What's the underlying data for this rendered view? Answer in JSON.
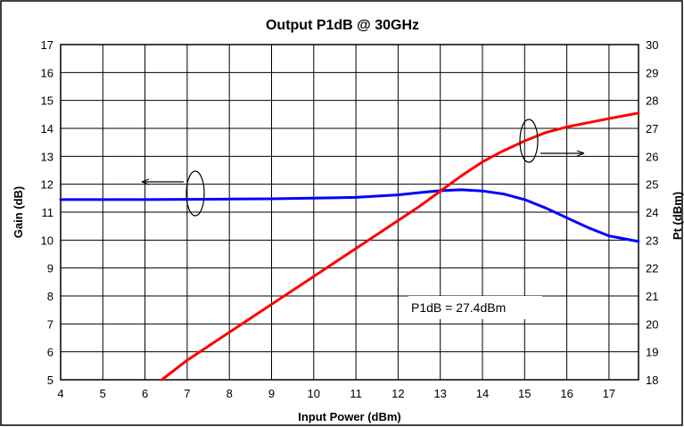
{
  "chart_data": {
    "type": "line",
    "title": "Output P1dB @ 30GHz",
    "xlabel": "Input Power (dBm)",
    "ylabel": "Gain (dB)",
    "y2label": "Pt (dBm)",
    "xlim": [
      4,
      17.7
    ],
    "ylim": [
      5,
      17
    ],
    "y2lim": [
      18,
      30
    ],
    "x_ticks": [
      4,
      5,
      6,
      7,
      8,
      9,
      10,
      11,
      12,
      13,
      14,
      15,
      16,
      17
    ],
    "y_ticks": [
      5,
      6,
      7,
      8,
      9,
      10,
      11,
      12,
      13,
      14,
      15,
      16,
      17
    ],
    "y2_ticks": [
      18,
      19,
      20,
      21,
      22,
      23,
      24,
      25,
      26,
      27,
      28,
      29,
      30
    ],
    "grid": true,
    "series": [
      {
        "axis": "left",
        "color": "#0000ff",
        "points": [
          [
            4,
            11.45
          ],
          [
            5,
            11.45
          ],
          [
            6,
            11.45
          ],
          [
            7,
            11.46
          ],
          [
            8,
            11.47
          ],
          [
            9,
            11.48
          ],
          [
            10,
            11.5
          ],
          [
            11,
            11.53
          ],
          [
            12,
            11.62
          ],
          [
            12.5,
            11.7
          ],
          [
            13,
            11.77
          ],
          [
            13.5,
            11.8
          ],
          [
            14,
            11.76
          ],
          [
            14.5,
            11.65
          ],
          [
            15,
            11.45
          ],
          [
            15.5,
            11.15
          ],
          [
            16,
            10.8
          ],
          [
            16.5,
            10.45
          ],
          [
            17,
            10.15
          ],
          [
            17.7,
            9.95
          ]
        ]
      },
      {
        "axis": "right",
        "color": "#ff0000",
        "points": [
          [
            6.4,
            18
          ],
          [
            7,
            18.7
          ],
          [
            8,
            19.7
          ],
          [
            9,
            20.7
          ],
          [
            10,
            21.7
          ],
          [
            11,
            22.7
          ],
          [
            12,
            23.7
          ],
          [
            12.5,
            24.2
          ],
          [
            13,
            24.75
          ],
          [
            13.5,
            25.3
          ],
          [
            14,
            25.8
          ],
          [
            14.5,
            26.2
          ],
          [
            15,
            26.55
          ],
          [
            15.5,
            26.85
          ],
          [
            16,
            27.05
          ],
          [
            16.5,
            27.2
          ],
          [
            17,
            27.35
          ],
          [
            17.7,
            27.55
          ]
        ]
      }
    ],
    "annotation": "P1dB = 27.4dBm"
  }
}
